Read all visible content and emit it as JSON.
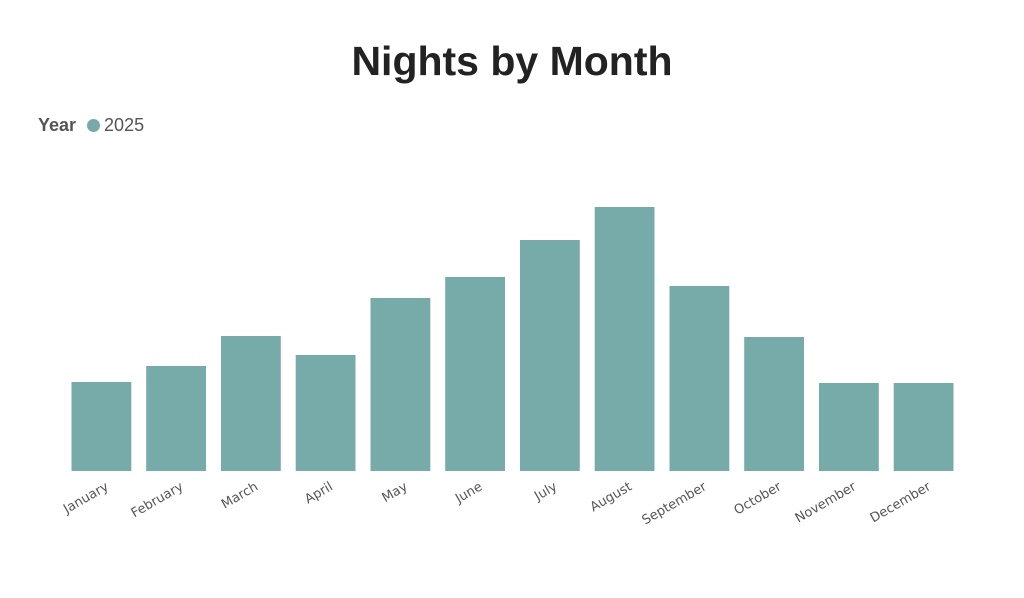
{
  "chart_data": {
    "type": "bar",
    "title": "Nights by Month",
    "xlabel": "",
    "ylabel": "",
    "legend": {
      "title": "Year",
      "position": "top-left"
    },
    "categories": [
      "January",
      "February",
      "March",
      "April",
      "May",
      "June",
      "July",
      "August",
      "September",
      "October",
      "November",
      "December"
    ],
    "series": [
      {
        "name": "2025",
        "color": "#77abaa",
        "values": [
          8.9,
          10.5,
          13.5,
          11.6,
          17.3,
          19.4,
          23.1,
          26.4,
          18.5,
          13.4,
          8.8,
          8.8
        ]
      }
    ],
    "ylim": [
      0,
      30
    ],
    "grid": false
  }
}
